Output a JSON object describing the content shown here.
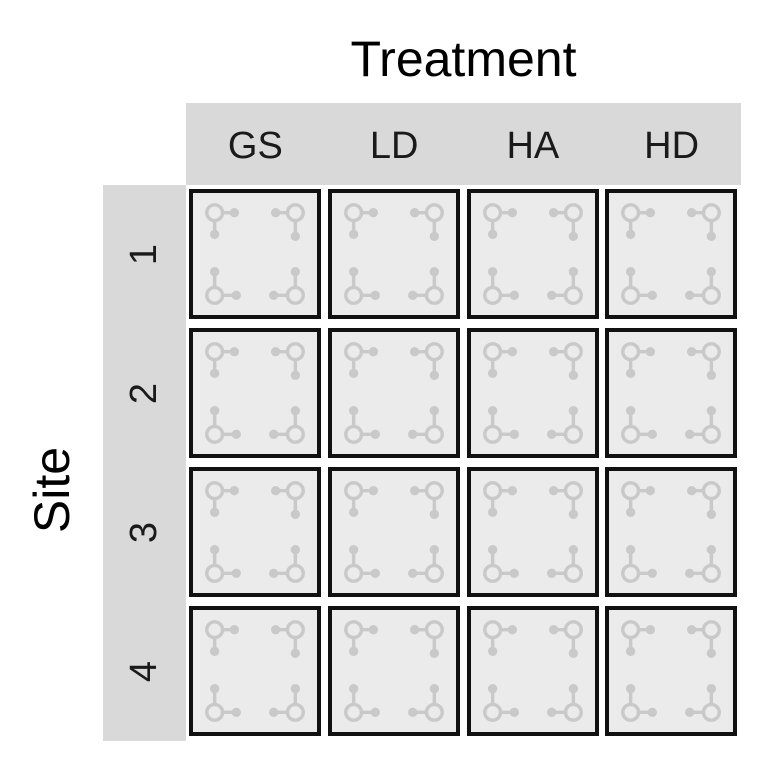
{
  "x_axis_title": "Treatment",
  "y_axis_title": "Site",
  "treatments": [
    "GS",
    "LD",
    "HA",
    "HD"
  ],
  "sites": [
    "1",
    "2",
    "3",
    "4"
  ],
  "colors": {
    "strip": "#d9d9d9",
    "panel": "#ebebeb",
    "border": "#111111",
    "glyph": "#c9c9c9"
  },
  "panel_icon": "plot-corner-marker-icon"
}
